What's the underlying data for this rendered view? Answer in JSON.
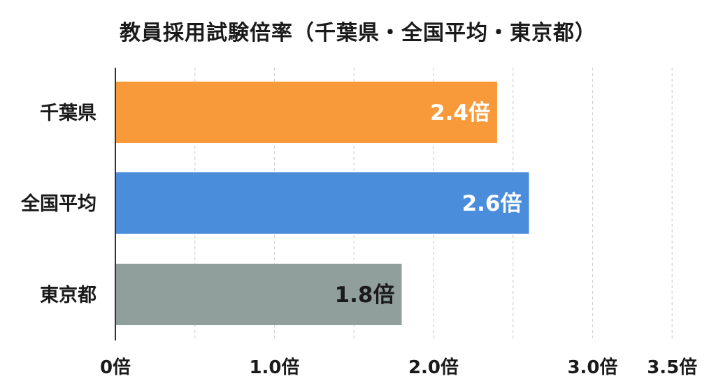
{
  "chart_data": {
    "type": "bar",
    "orientation": "horizontal",
    "title": "教員採用試験倍率（千葉県・全国平均・東京都）",
    "categories": [
      "千葉県",
      "全国平均",
      "東京都"
    ],
    "values": [
      2.4,
      2.6,
      1.8
    ],
    "value_labels": [
      "2.4倍",
      "2.6倍",
      "1.8倍"
    ],
    "value_label_colors": [
      "#ffffff",
      "#ffffff",
      "#1a1a1a"
    ],
    "colors": [
      "#f89a3a",
      "#4a8edb",
      "#919f9c"
    ],
    "xlim": [
      0,
      3.5
    ],
    "xticks": [
      {
        "value": 0,
        "label": "0倍"
      },
      {
        "value": 1.0,
        "label": "1.0倍"
      },
      {
        "value": 2.0,
        "label": "2.0倍"
      },
      {
        "value": 3.0,
        "label": "3.0倍"
      },
      {
        "value": 3.5,
        "label": "3.5倍"
      }
    ],
    "gridlines": [
      0.5,
      1.0,
      1.5,
      2.0,
      2.5,
      3.0,
      3.5
    ],
    "grid": true,
    "grid_style": "dashed",
    "xlabel": "",
    "ylabel": ""
  }
}
